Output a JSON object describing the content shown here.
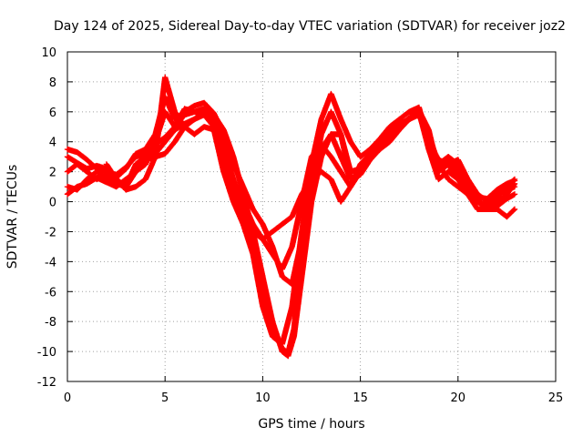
{
  "chart_data": {
    "type": "scatter",
    "title": "Day 124 of 2025, Sidereal Day-to-day VTEC variation (SDTVAR) for receiver joz2",
    "xlabel": "GPS time / hours",
    "ylabel": "SDTVAR / TECUs",
    "xlim": [
      0,
      25
    ],
    "ylim": [
      -12,
      10
    ],
    "xticks": [
      "0",
      "5",
      "10",
      "15",
      "20",
      "25"
    ],
    "yticks": [
      "-12",
      "-10",
      "-8",
      "-6",
      "-4",
      "-2",
      "0",
      "2",
      "4",
      "6",
      "8",
      "10"
    ],
    "grid": true,
    "marker": "+",
    "color": "#ff0000",
    "series": [
      {
        "x": [
          0.0,
          0.5,
          1.0,
          1.5,
          2.0,
          2.5,
          3.0,
          3.5,
          4.0,
          4.5,
          5.0,
          5.5,
          6.0,
          6.5,
          7.0,
          7.5,
          8.0,
          8.5,
          9.0,
          9.5,
          10.0,
          10.5,
          11.0,
          11.3,
          11.6,
          12.0,
          12.5,
          13.0,
          13.5,
          14.0,
          14.5,
          15.0,
          15.5,
          16.0,
          16.5,
          17.0,
          17.5,
          18.0,
          18.5,
          19.0,
          19.5,
          20.0,
          20.5,
          21.0,
          21.5,
          22.0,
          22.5,
          22.9
        ],
        "y": [
          3.5,
          3.3,
          2.8,
          2.2,
          2.0,
          1.8,
          2.3,
          3.0,
          3.2,
          3.8,
          4.3,
          5.0,
          5.8,
          6.0,
          6.2,
          5.8,
          4.8,
          3.0,
          0.5,
          -2.0,
          -5.0,
          -8.0,
          -10.0,
          -10.3,
          -9.0,
          -5.0,
          0.0,
          3.0,
          4.5,
          4.5,
          2.0,
          2.2,
          3.0,
          3.8,
          4.5,
          5.0,
          5.5,
          6.0,
          4.5,
          2.5,
          3.0,
          2.5,
          1.0,
          0.5,
          0.0,
          0.5,
          0.8,
          1.0
        ]
      },
      {
        "x": [
          0.0,
          0.5,
          1.0,
          1.5,
          2.0,
          2.5,
          3.0,
          3.5,
          4.0,
          4.5,
          5.0,
          5.5,
          6.0,
          6.5,
          7.0,
          7.5,
          8.0,
          8.5,
          9.0,
          9.5,
          10.0,
          10.5,
          11.0,
          11.3,
          11.6,
          12.0,
          12.5,
          13.0,
          13.5,
          14.0,
          14.5,
          15.0,
          15.5,
          16.0,
          16.5,
          17.0,
          17.5,
          18.0,
          18.5,
          19.0,
          19.5,
          20.0,
          20.5,
          21.0,
          21.5,
          22.0,
          22.5,
          22.9
        ],
        "y": [
          1.0,
          0.8,
          1.5,
          2.0,
          1.5,
          1.2,
          1.0,
          2.0,
          2.8,
          3.0,
          3.2,
          4.0,
          5.0,
          5.5,
          6.0,
          5.5,
          3.5,
          1.5,
          -0.5,
          -3.0,
          -6.0,
          -8.5,
          -9.8,
          -10.1,
          -8.5,
          -3.5,
          1.0,
          4.5,
          6.0,
          4.5,
          1.5,
          1.8,
          2.8,
          3.5,
          4.0,
          4.8,
          5.5,
          6.0,
          4.0,
          2.0,
          2.5,
          1.5,
          0.8,
          0.0,
          -0.5,
          -0.3,
          0.2,
          0.5
        ]
      },
      {
        "x": [
          0.0,
          0.5,
          1.0,
          1.5,
          2.0,
          2.5,
          3.0,
          3.5,
          4.0,
          4.5,
          5.0,
          5.5,
          6.0,
          6.5,
          7.0,
          7.5,
          8.0,
          8.5,
          9.0,
          9.5,
          10.0,
          10.5,
          11.0,
          11.5,
          12.0,
          12.5,
          13.0,
          13.5,
          14.0,
          14.5,
          15.0,
          15.5,
          16.0,
          16.5,
          17.0,
          17.5,
          18.0,
          18.5,
          19.0,
          19.5,
          20.0,
          20.5,
          21.0,
          21.5,
          22.0,
          22.5,
          22.9
        ],
        "y": [
          2.0,
          2.5,
          2.0,
          1.5,
          1.8,
          1.5,
          1.0,
          2.5,
          3.0,
          3.2,
          4.0,
          4.8,
          5.2,
          5.5,
          5.8,
          5.0,
          2.0,
          0.0,
          -1.5,
          -3.5,
          -7.0,
          -9.0,
          -9.5,
          -7.0,
          -2.0,
          2.5,
          5.5,
          7.2,
          5.5,
          4.0,
          3.0,
          3.5,
          4.2,
          5.0,
          5.5,
          6.0,
          6.3,
          4.0,
          2.8,
          2.5,
          2.8,
          1.5,
          0.5,
          0.0,
          0.3,
          1.0,
          1.5
        ]
      },
      {
        "x": [
          0.0,
          0.5,
          1.0,
          1.5,
          2.0,
          2.5,
          3.0,
          3.5,
          4.0,
          4.5,
          5.0,
          5.5,
          6.0,
          6.5,
          7.0,
          7.5,
          8.0,
          8.5,
          9.0,
          9.5,
          10.0,
          10.5,
          11.0,
          11.5,
          12.0,
          12.5,
          13.0,
          13.5,
          14.0,
          14.5,
          15.0,
          15.5,
          16.0,
          16.5,
          17.0,
          17.5,
          18.0,
          18.5,
          19.0,
          19.5,
          20.0,
          20.5,
          21.0,
          21.5,
          22.0,
          22.5,
          22.9
        ],
        "y": [
          0.5,
          1.0,
          1.2,
          1.6,
          1.3,
          1.0,
          1.5,
          2.0,
          2.5,
          4.0,
          6.0,
          5.0,
          6.2,
          6.0,
          5.8,
          5.5,
          3.0,
          1.0,
          0.0,
          -1.5,
          -2.5,
          -3.5,
          -4.5,
          -3.0,
          0.0,
          3.0,
          3.8,
          3.0,
          2.0,
          1.0,
          2.5,
          3.2,
          4.0,
          4.8,
          5.2,
          5.5,
          6.0,
          3.5,
          1.5,
          2.0,
          1.5,
          0.5,
          0.0,
          -0.3,
          0.0,
          0.5,
          1.2
        ]
      },
      {
        "x": [
          0.0,
          0.5,
          1.0,
          1.5,
          2.0,
          2.5,
          3.0,
          3.5,
          4.0,
          4.5,
          5.0,
          5.5,
          6.0,
          6.5,
          7.0,
          7.5,
          8.0,
          8.5,
          9.0,
          9.5,
          10.0,
          10.5,
          11.0,
          11.5,
          12.0,
          12.5,
          13.0,
          13.5,
          14.0,
          14.5,
          15.0,
          15.5,
          16.0,
          16.5,
          17.0,
          17.5,
          18.0,
          18.5,
          19.0,
          19.5,
          20.0,
          20.5,
          21.0,
          21.5,
          22.0,
          22.5,
          22.9
        ],
        "y": [
          3.0,
          2.6,
          2.2,
          2.4,
          2.2,
          1.6,
          2.2,
          3.2,
          3.5,
          4.5,
          7.0,
          5.5,
          6.0,
          6.4,
          6.6,
          5.9,
          4.5,
          2.5,
          1.0,
          -0.5,
          -1.5,
          -3.0,
          -5.0,
          -5.5,
          -2.5,
          1.0,
          3.5,
          4.5,
          3.0,
          1.5,
          2.0,
          2.8,
          3.6,
          4.4,
          5.0,
          5.6,
          6.1,
          4.8,
          2.0,
          3.0,
          2.0,
          1.0,
          0.3,
          0.2,
          0.8,
          1.2,
          1.4
        ]
      },
      {
        "x": [
          2.0,
          2.5,
          3.0,
          3.5,
          4.0,
          4.5,
          5.0,
          5.5,
          6.0,
          6.5,
          7.0,
          7.5,
          8.0,
          8.5,
          9.0,
          9.5,
          10.0,
          10.5,
          11.0,
          11.5,
          12.0,
          12.5,
          13.0,
          13.5,
          14.0,
          14.5,
          15.0,
          15.5,
          16.0,
          16.5,
          17.0,
          17.5,
          18.0,
          18.5,
          19.0,
          19.5,
          20.0,
          20.5,
          21.0,
          21.5,
          22.0,
          22.5,
          22.9
        ],
        "y": [
          2.5,
          1.5,
          0.8,
          1.0,
          1.5,
          3.0,
          8.3,
          6.0,
          5.0,
          4.5,
          5.0,
          4.8,
          2.0,
          1.0,
          -1.0,
          -2.0,
          -2.5,
          -2.0,
          -1.5,
          -1.0,
          0.5,
          1.5,
          2.0,
          1.5,
          0.0,
          1.0,
          2.0,
          3.0,
          3.8,
          4.5,
          5.0,
          5.5,
          5.8,
          4.2,
          2.5,
          1.5,
          1.0,
          0.5,
          -0.5,
          -0.5,
          -0.5,
          -1.0,
          -0.5
        ]
      }
    ]
  }
}
